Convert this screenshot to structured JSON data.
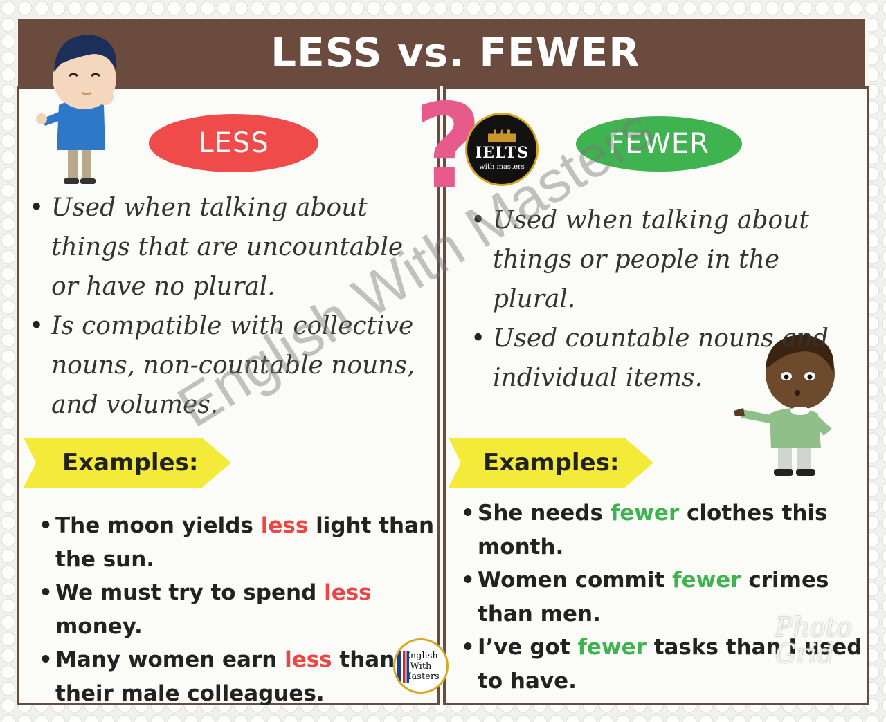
{
  "header": {
    "title": "LESS vs. FEWER"
  },
  "less": {
    "label": "LESS",
    "rules": [
      "Used when talking about things that are uncountable or have no plural.",
      "Is compatible with collective nouns, non-countable nouns, and volumes."
    ],
    "examples_label": "Examples:",
    "examples": [
      {
        "before": "The moon yields ",
        "word": "less",
        "after": " light than the sun."
      },
      {
        "before": "We must try to spend ",
        "word": "less",
        "after": " money."
      },
      {
        "before": "Many women earn ",
        "word": "less",
        "after": " than their male colleagues."
      }
    ]
  },
  "fewer": {
    "label": "FEWER",
    "rules": [
      "Used when talking about things or people in the plural.",
      "Used countable nouns and individual items."
    ],
    "examples_label": "Examples:",
    "examples": [
      {
        "before": "She needs ",
        "word": "fewer",
        "after": " clothes this month."
      },
      {
        "before": "Women commit ",
        "word": "fewer",
        "after": " crimes than men."
      },
      {
        "before": "I’ve got ",
        "word": "fewer",
        "after": " tasks than I used to have."
      }
    ]
  },
  "question_mark": "?",
  "watermark": "English With Masters",
  "ielts_logo": {
    "name": "IELTS",
    "sub": "with masters"
  },
  "ewm_logo": {
    "line1": "English",
    "line2": "With",
    "line3": "Masters"
  },
  "photogrid": {
    "line1": "Photo",
    "line2": "Grid"
  },
  "colors": {
    "header": "#6b4b3e",
    "less": "#ef4b4b",
    "fewer": "#3fb34f",
    "examples_tag": "#f3ea3a",
    "question": "#e75a8c"
  }
}
